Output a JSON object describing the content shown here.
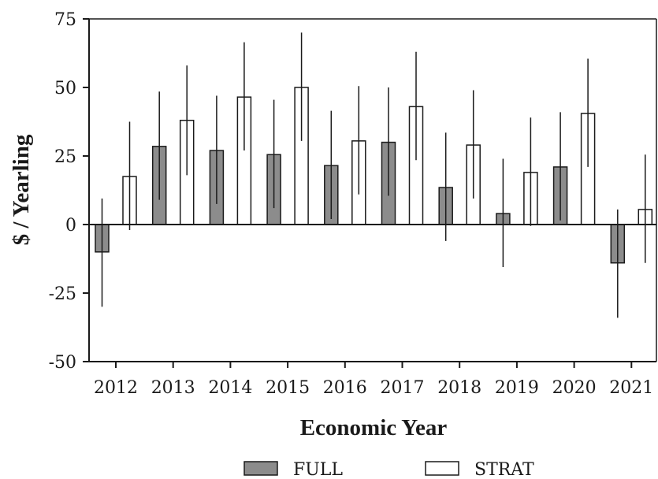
{
  "chart_data": {
    "type": "bar",
    "xlabel": "Economic Year",
    "ylabel": "$ / Yearling",
    "ylim": [
      -50,
      75
    ],
    "yticks": [
      "75",
      "50",
      "25",
      "0",
      "-25",
      "-50"
    ],
    "categories": [
      "2012",
      "2013",
      "2014",
      "2015",
      "2016",
      "2017",
      "2018",
      "2019",
      "2020",
      "2021"
    ],
    "series": [
      {
        "name": "FULL",
        "color": "#8c8c8c",
        "values": [
          -10,
          28.5,
          27,
          25.5,
          21.5,
          30,
          13.5,
          4,
          21,
          -14
        ],
        "error_low": [
          -30,
          9,
          7.5,
          6,
          2,
          10.5,
          -6,
          -15.5,
          1.5,
          -34
        ],
        "error_high": [
          9.5,
          48.5,
          47,
          45.5,
          41.5,
          50,
          33.5,
          24,
          41,
          5.5
        ]
      },
      {
        "name": "STRAT",
        "color": "#ffffff",
        "values": [
          17.5,
          38,
          46.5,
          50,
          30.5,
          43,
          29,
          19,
          40.5,
          5.5
        ],
        "error_low": [
          -2,
          18,
          27,
          30.5,
          11,
          23.5,
          9.5,
          -0.5,
          21,
          -14
        ],
        "error_high": [
          37.5,
          58,
          66.5,
          70,
          50.5,
          63,
          49,
          39,
          60.5,
          25.5
        ]
      }
    ],
    "legend": {
      "position": "bottom",
      "items": [
        "FULL",
        "STRAT"
      ]
    },
    "grid": false,
    "zero_line": true
  }
}
